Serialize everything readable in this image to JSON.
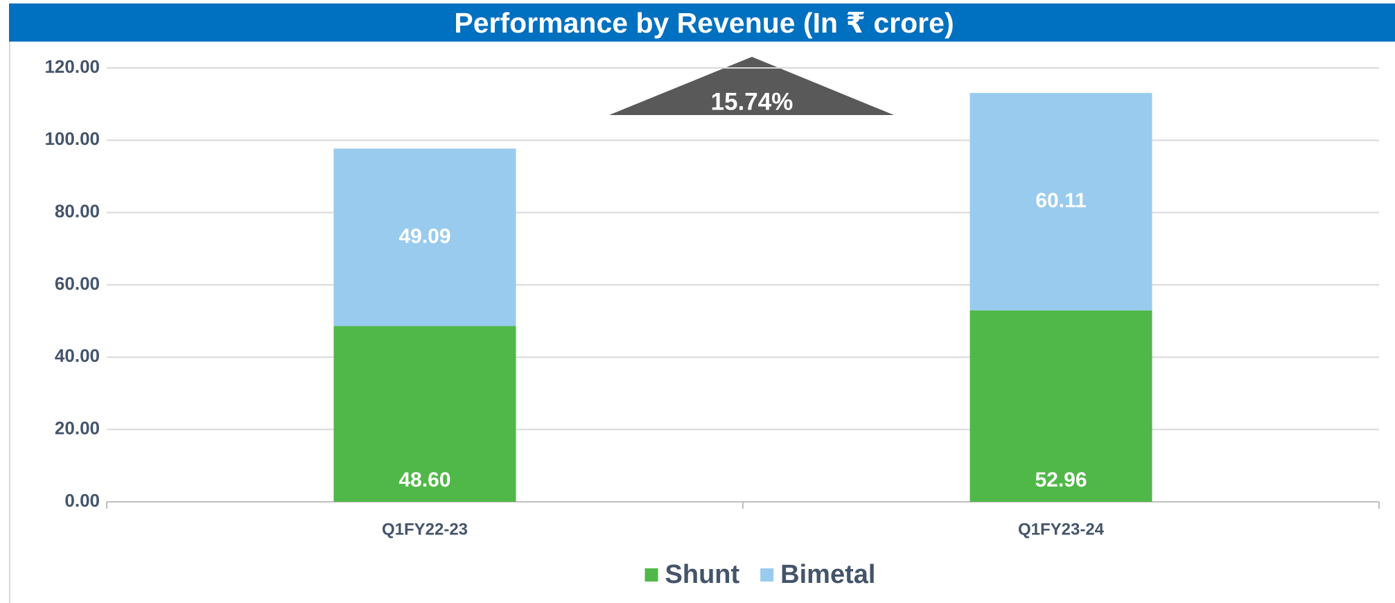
{
  "chart_data": {
    "type": "bar",
    "stacked": true,
    "title": "Performance by Revenue (In ₹ crore)",
    "categories": [
      "Q1FY22-23",
      "Q1FY23-24"
    ],
    "series": [
      {
        "name": "Shunt",
        "color": "#50b848",
        "values": [
          48.6,
          52.96
        ],
        "value_labels": [
          "48.60",
          "52.96"
        ]
      },
      {
        "name": "Bimetal",
        "color": "#99cbee",
        "values": [
          49.09,
          60.11
        ],
        "value_labels": [
          "49.09",
          "60.11"
        ]
      }
    ],
    "annotation": "15.74%",
    "ylim": [
      0,
      120
    ],
    "yticks": [
      {
        "value": 0,
        "label": "0.00"
      },
      {
        "value": 20,
        "label": "20.00"
      },
      {
        "value": 40,
        "label": "40.00"
      },
      {
        "value": 60,
        "label": "60.00"
      },
      {
        "value": 80,
        "label": "80.00"
      },
      {
        "value": 100,
        "label": "100.00"
      },
      {
        "value": 120,
        "label": "120.00"
      }
    ],
    "grid": true,
    "legend": "bottom"
  }
}
